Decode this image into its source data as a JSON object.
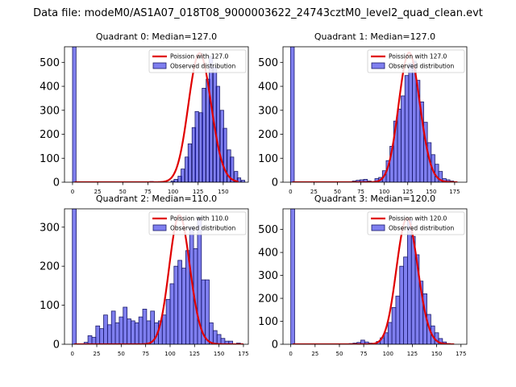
{
  "figure": {
    "title": "Data file: modeM0/AS1A07_018T08_9000003622_24743cztM0_level2_quad_clean.evt"
  },
  "chart_data": [
    {
      "type": "bar",
      "title": "Quadrant 0: Median=127.0",
      "xlim": [
        -8,
        175
      ],
      "ylim": [
        0,
        565
      ],
      "xticks": [
        0,
        25,
        50,
        75,
        100,
        125,
        150
      ],
      "yticks": [
        0,
        100,
        200,
        300,
        400,
        500
      ],
      "bin_width": 3.5,
      "bins": [
        [
          0,
          565
        ],
        [
          77,
          3
        ],
        [
          98,
          5
        ],
        [
          101,
          12
        ],
        [
          105,
          25
        ],
        [
          108,
          55
        ],
        [
          112,
          105
        ],
        [
          115,
          160
        ],
        [
          119,
          228
        ],
        [
          122,
          295
        ],
        [
          126,
          290
        ],
        [
          129,
          392
        ],
        [
          133,
          430
        ],
        [
          136,
          525
        ],
        [
          140,
          480
        ],
        [
          143,
          400
        ],
        [
          147,
          300
        ],
        [
          150,
          225
        ],
        [
          154,
          135
        ],
        [
          157,
          105
        ],
        [
          161,
          45
        ],
        [
          164,
          18
        ],
        [
          168,
          8
        ]
      ],
      "poisson_mean": 127,
      "poisson_peak": 538,
      "curve_range": [
        2,
        165
      ],
      "legend": [
        "Poission with 127.0",
        "Observed distribution"
      ]
    },
    {
      "type": "bar",
      "title": "Quadrant 1: Median=127.0",
      "xlim": [
        -8,
        188
      ],
      "ylim": [
        0,
        565
      ],
      "xticks": [
        0,
        25,
        50,
        75,
        100,
        125,
        150,
        175
      ],
      "yticks": [
        0,
        100,
        200,
        300,
        400,
        500
      ],
      "bin_width": 4,
      "bins": [
        [
          0,
          565
        ],
        [
          66,
          5
        ],
        [
          70,
          8
        ],
        [
          74,
          10
        ],
        [
          78,
          12
        ],
        [
          82,
          5
        ],
        [
          90,
          15
        ],
        [
          94,
          20
        ],
        [
          98,
          48
        ],
        [
          102,
          90
        ],
        [
          106,
          150
        ],
        [
          110,
          255
        ],
        [
          114,
          305
        ],
        [
          118,
          360
        ],
        [
          122,
          445
        ],
        [
          126,
          495
        ],
        [
          130,
          505
        ],
        [
          134,
          425
        ],
        [
          138,
          335
        ],
        [
          142,
          250
        ],
        [
          146,
          165
        ],
        [
          150,
          115
        ],
        [
          154,
          75
        ],
        [
          158,
          45
        ],
        [
          162,
          15
        ],
        [
          166,
          10
        ],
        [
          170,
          5
        ]
      ],
      "poisson_mean": 127,
      "poisson_peak": 540,
      "curve_range": [
        2,
        178
      ],
      "legend": [
        "Poission with 127.0",
        "Observed distribution"
      ]
    },
    {
      "type": "bar",
      "title": "Quadrant 2: Median=110.0",
      "xlim": [
        -8,
        180
      ],
      "ylim": [
        0,
        347
      ],
      "xticks": [
        0,
        25,
        50,
        75,
        100,
        125,
        150,
        175
      ],
      "yticks": [
        0,
        100,
        200,
        300
      ],
      "bin_width": 4,
      "bins": [
        [
          0,
          347
        ],
        [
          12,
          5
        ],
        [
          16,
          22
        ],
        [
          20,
          18
        ],
        [
          24,
          47
        ],
        [
          28,
          40
        ],
        [
          32,
          75
        ],
        [
          36,
          50
        ],
        [
          40,
          85
        ],
        [
          44,
          55
        ],
        [
          48,
          70
        ],
        [
          52,
          95
        ],
        [
          56,
          65
        ],
        [
          60,
          60
        ],
        [
          64,
          55
        ],
        [
          68,
          70
        ],
        [
          72,
          90
        ],
        [
          76,
          60
        ],
        [
          80,
          85
        ],
        [
          84,
          55
        ],
        [
          88,
          60
        ],
        [
          92,
          75
        ],
        [
          96,
          115
        ],
        [
          100,
          155
        ],
        [
          104,
          200
        ],
        [
          108,
          215
        ],
        [
          112,
          195
        ],
        [
          116,
          240
        ],
        [
          120,
          300
        ],
        [
          124,
          245
        ],
        [
          128,
          325
        ],
        [
          132,
          165
        ],
        [
          136,
          165
        ],
        [
          140,
          55
        ],
        [
          144,
          35
        ],
        [
          148,
          25
        ],
        [
          152,
          15
        ],
        [
          156,
          8
        ],
        [
          160,
          8
        ],
        [
          168,
          3
        ]
      ],
      "poisson_mean": 110,
      "poisson_peak": 330,
      "curve_range": [
        2,
        175
      ],
      "legend": [
        "Poission with 110.0",
        "Observed distribution"
      ]
    },
    {
      "type": "bar",
      "title": "Quadrant 3: Median=120.0",
      "xlim": [
        -8,
        181
      ],
      "ylim": [
        0,
        590
      ],
      "xticks": [
        0,
        25,
        50,
        75,
        100,
        125,
        150,
        175
      ],
      "yticks": [
        0,
        100,
        200,
        300,
        400,
        500
      ],
      "bin_width": 4,
      "bins": [
        [
          0,
          590
        ],
        [
          60,
          3
        ],
        [
          64,
          5
        ],
        [
          68,
          8
        ],
        [
          72,
          18
        ],
        [
          76,
          10
        ],
        [
          80,
          5
        ],
        [
          88,
          12
        ],
        [
          92,
          28
        ],
        [
          96,
          50
        ],
        [
          100,
          95
        ],
        [
          104,
          160
        ],
        [
          108,
          210
        ],
        [
          112,
          340
        ],
        [
          116,
          380
        ],
        [
          120,
          545
        ],
        [
          124,
          470
        ],
        [
          128,
          390
        ],
        [
          132,
          275
        ],
        [
          136,
          220
        ],
        [
          140,
          130
        ],
        [
          144,
          80
        ],
        [
          148,
          50
        ],
        [
          152,
          25
        ],
        [
          156,
          10
        ],
        [
          160,
          3
        ]
      ],
      "poisson_mean": 120,
      "poisson_peak": 548,
      "curve_range": [
        2,
        168
      ],
      "legend": [
        "Poission with 120.0",
        "Observed distribution"
      ]
    }
  ]
}
